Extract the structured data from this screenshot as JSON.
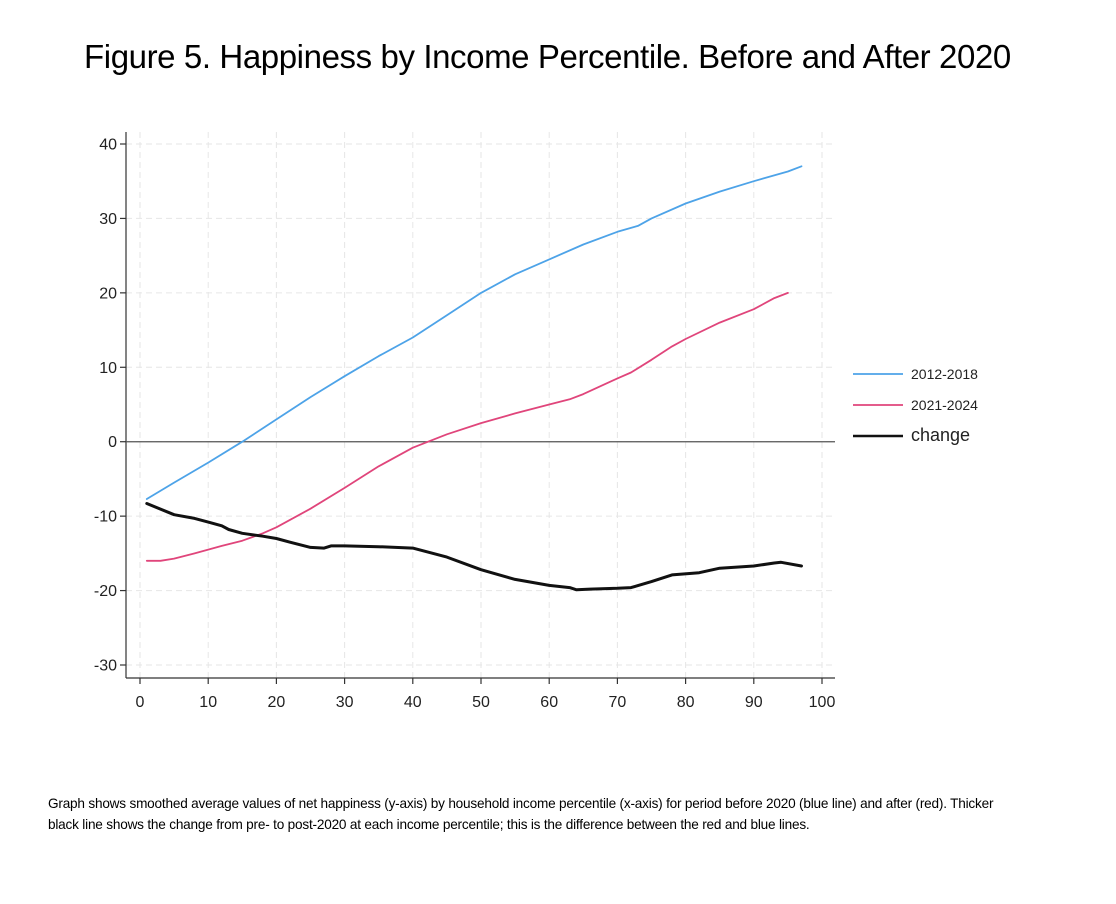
{
  "page": {
    "title": "Figure 5. Happiness by Income Percentile.  Before and After 2020",
    "caption": " Graph shows smoothed average values of net happiness (y-axis) by household income percentile (x-axis) for period before 2020 (blue line) and after (red).  Thicker black line shows the change from pre- to post-2020 at each income percentile; this is the difference between the red and blue lines."
  },
  "chart_data": {
    "type": "line",
    "title": "Figure 5. Happiness by Income Percentile.  Before and After 2020",
    "xlabel": "",
    "ylabel": "",
    "xlim": [
      0,
      100
    ],
    "ylim": [
      -32,
      41
    ],
    "xticks": [
      0,
      10,
      20,
      30,
      40,
      50,
      60,
      70,
      80,
      90,
      100
    ],
    "yticks": [
      -30,
      -20,
      -10,
      0,
      10,
      20,
      30,
      40
    ],
    "grid": true,
    "reference_line_y": 0,
    "legend_position": "right",
    "series": [
      {
        "name": "2012-2018",
        "color": "#4da3e8",
        "x": [
          1,
          5,
          10,
          15,
          20,
          25,
          30,
          35,
          40,
          45,
          50,
          55,
          60,
          65,
          70,
          73,
          75,
          80,
          85,
          90,
          95,
          97
        ],
        "y": [
          -7.7,
          -5.5,
          -2.8,
          0,
          3,
          6,
          8.8,
          11.5,
          14,
          17,
          20,
          22.5,
          24.5,
          26.5,
          28.2,
          29,
          30,
          32,
          33.6,
          35,
          36.3,
          37
        ]
      },
      {
        "name": "2021-2024",
        "color": "#e0457b",
        "x": [
          1,
          3,
          5,
          8,
          12,
          15,
          18,
          20,
          25,
          30,
          35,
          40,
          45,
          50,
          55,
          60,
          63,
          65,
          70,
          72,
          75,
          78,
          80,
          85,
          90,
          93,
          95
        ],
        "y": [
          -16,
          -16,
          -15.7,
          -15,
          -14,
          -13.3,
          -12.3,
          -11.5,
          -9,
          -6.2,
          -3.3,
          -0.8,
          1,
          2.5,
          3.8,
          5,
          5.7,
          6.4,
          8.5,
          9.3,
          11,
          12.8,
          13.8,
          16,
          17.8,
          19.3,
          20
        ]
      },
      {
        "name": "change",
        "color": "#111111",
        "x": [
          1,
          5,
          8,
          10,
          12,
          13,
          15,
          18,
          20,
          22,
          25,
          27,
          28,
          30,
          35,
          40,
          45,
          50,
          55,
          60,
          63,
          64,
          66,
          70,
          72,
          75,
          78,
          82,
          85,
          90,
          93,
          94,
          97
        ],
        "y": [
          -8.3,
          -9.8,
          -10.3,
          -10.8,
          -11.3,
          -11.8,
          -12.3,
          -12.7,
          -13,
          -13.5,
          -14.2,
          -14.3,
          -14,
          -14,
          -14.1,
          -14.3,
          -15.5,
          -17.2,
          -18.5,
          -19.3,
          -19.6,
          -19.9,
          -19.8,
          -19.7,
          -19.6,
          -18.8,
          -17.9,
          -17.6,
          -17,
          -16.7,
          -16.3,
          -16.2,
          -16.7
        ]
      }
    ]
  }
}
